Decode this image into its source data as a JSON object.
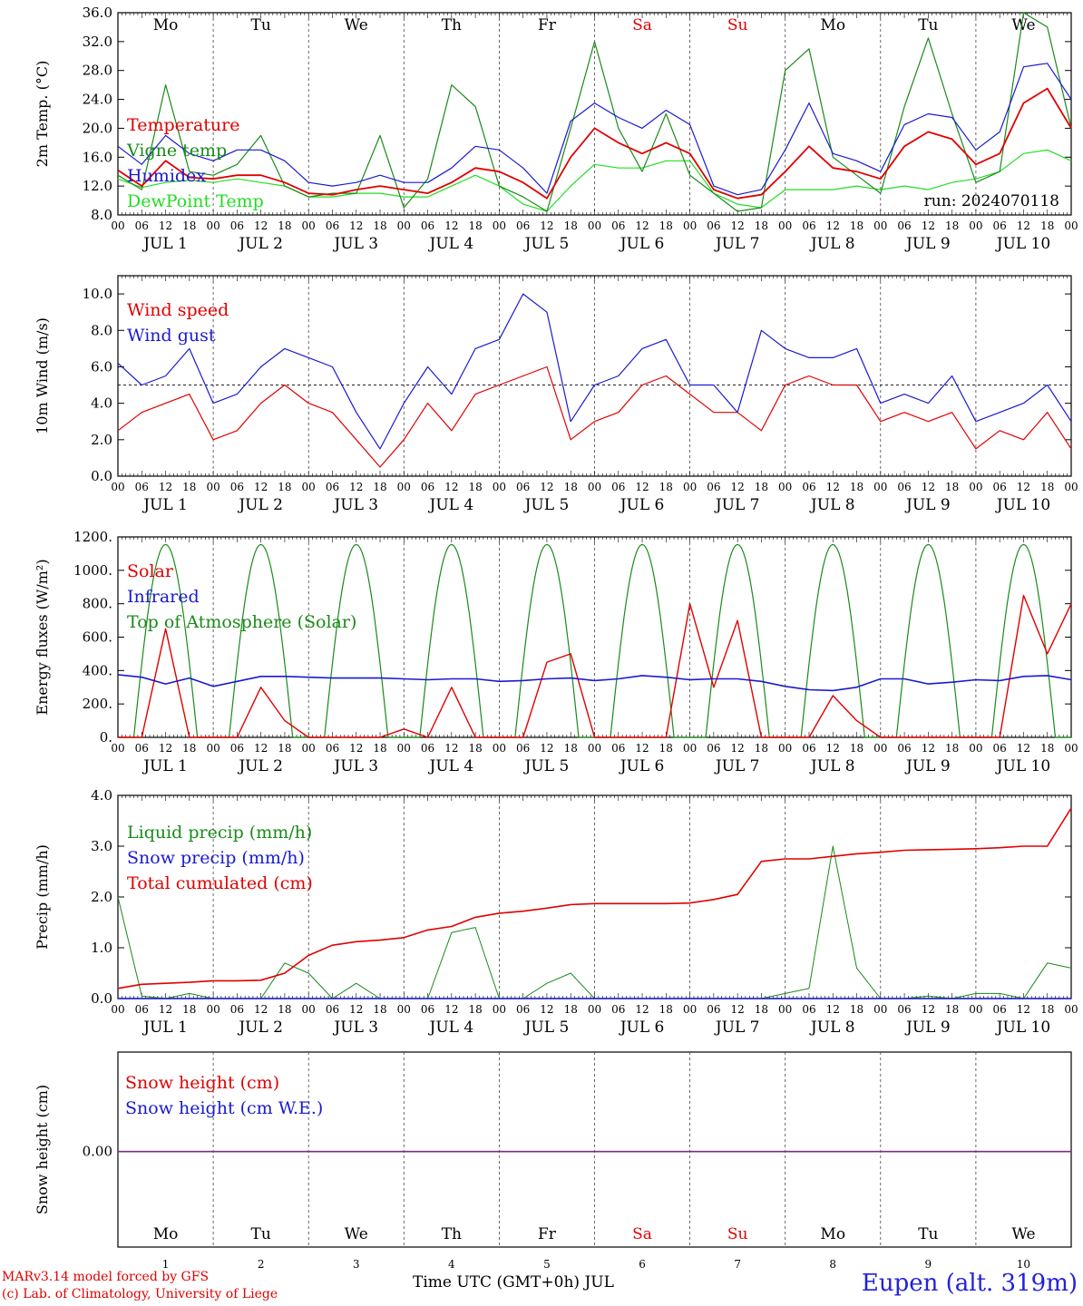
{
  "footer": {
    "credit_line1": "MARv3.14 model forced by GFS",
    "credit_line2": "(c) Lab. of Climatology, University of Liege",
    "x_title": "Time UTC (GMT+0h) JUL",
    "station": "Eupen (alt. 319m)"
  },
  "colors": {
    "red": "#e00000",
    "green": "#1a8a1a",
    "blue": "#1a1ad0",
    "lightgreen": "#22dd22",
    "purple": "#7a2a8a",
    "weekend": "#e00000"
  },
  "chart_data": [
    {
      "type": "line",
      "ylabel": "2m Temp. (°C)",
      "ylim": [
        8,
        36
      ],
      "yticks": [
        "8.0",
        "12.0",
        "16.0",
        "20.0",
        "24.0",
        "28.0",
        "32.0",
        "36.0"
      ],
      "x_hours": [
        0,
        6,
        12,
        18,
        24,
        30,
        36,
        42,
        48,
        54,
        60,
        66,
        72,
        78,
        84,
        90,
        96,
        102,
        108,
        114,
        120,
        126,
        132,
        138,
        144,
        150,
        156,
        162,
        168,
        174,
        180,
        186,
        192,
        198,
        204,
        210,
        216,
        222,
        228,
        234,
        240
      ],
      "weekdays": [
        "Mo",
        "Tu",
        "We",
        "Th",
        "Fr",
        "Sa",
        "Su",
        "Mo",
        "Tu",
        "We"
      ],
      "date_labels": [
        "JUL  1",
        "JUL  2",
        "JUL  3",
        "JUL  4",
        "JUL  5",
        "JUL  6",
        "JUL  7",
        "JUL  8",
        "JUL  9",
        "JUL 10"
      ],
      "annotation": "run: 2024070118",
      "series": [
        {
          "name": "Temperature",
          "color": "red",
          "values": [
            14.2,
            12.0,
            15.5,
            13.2,
            13.0,
            13.5,
            13.5,
            12.5,
            11.0,
            10.8,
            11.5,
            12.0,
            11.5,
            11.0,
            12.5,
            14.5,
            14.0,
            12.5,
            10.3,
            16.0,
            20.0,
            18.0,
            16.5,
            18.0,
            16.5,
            11.5,
            10.3,
            10.8,
            14.0,
            17.5,
            14.5,
            14.0,
            13.0,
            17.5,
            19.5,
            18.5,
            15.0,
            16.5,
            23.5,
            25.5,
            20.0
          ]
        },
        {
          "name": "Vigne temp",
          "color": "green",
          "values": [
            13.5,
            11.5,
            26.0,
            14.0,
            13.5,
            15.0,
            19.0,
            12.0,
            10.5,
            11.0,
            11.0,
            19.0,
            9.0,
            13.0,
            26.0,
            23.0,
            12.0,
            10.5,
            8.5,
            20.0,
            32.0,
            20.0,
            14.0,
            22.0,
            13.5,
            11.0,
            8.5,
            9.0,
            28.0,
            31.0,
            16.0,
            13.5,
            11.0,
            23.0,
            32.5,
            22.0,
            12.5,
            14.0,
            36.0,
            34.0,
            20.0
          ]
        },
        {
          "name": "Humidex",
          "color": "blue",
          "values": [
            17.5,
            15.0,
            19.0,
            16.5,
            15.5,
            17.0,
            17.0,
            15.5,
            12.5,
            12.0,
            12.5,
            13.5,
            12.5,
            12.5,
            14.5,
            17.5,
            17.0,
            14.5,
            11.0,
            21.0,
            23.5,
            21.5,
            20.0,
            22.5,
            20.5,
            12.0,
            10.8,
            11.5,
            17.0,
            23.5,
            16.5,
            15.5,
            14.0,
            20.5,
            22.0,
            21.5,
            17.0,
            19.5,
            28.5,
            29.0,
            24.0
          ]
        },
        {
          "name": "DewPoint Temp",
          "color": "lightgreen",
          "values": [
            13.0,
            11.8,
            12.5,
            12.8,
            12.5,
            13.0,
            12.5,
            12.0,
            10.5,
            10.5,
            11.0,
            11.0,
            10.5,
            10.5,
            12.0,
            13.5,
            12.0,
            9.5,
            8.5,
            12.0,
            15.0,
            14.5,
            14.5,
            15.5,
            15.5,
            11.0,
            9.5,
            9.0,
            11.5,
            11.5,
            11.5,
            12.0,
            11.5,
            12.0,
            11.5,
            12.5,
            13.0,
            14.0,
            16.5,
            17.0,
            15.5
          ]
        }
      ]
    },
    {
      "type": "line",
      "ylabel": "10m Wind (m/s)",
      "ylim": [
        0,
        11
      ],
      "yticks": [
        "0.0",
        "2.0",
        "4.0",
        "6.0",
        "8.0",
        "10.0"
      ],
      "ref_line": 5,
      "series": [
        {
          "name": "Wind speed",
          "color": "red",
          "values": [
            2.5,
            3.5,
            4.0,
            4.5,
            2.0,
            2.5,
            4.0,
            5.0,
            4.0,
            3.5,
            2.0,
            0.5,
            2.0,
            4.0,
            2.5,
            4.5,
            5.0,
            5.5,
            6.0,
            2.0,
            3.0,
            3.5,
            5.0,
            5.5,
            4.5,
            3.5,
            3.5,
            2.5,
            5.0,
            5.5,
            5.0,
            5.0,
            3.0,
            3.5,
            3.0,
            3.5,
            1.5,
            2.5,
            2.0,
            3.5,
            1.5
          ]
        },
        {
          "name": "Wind gust",
          "color": "blue",
          "values": [
            6.2,
            5.0,
            5.5,
            7.0,
            4.0,
            4.5,
            6.0,
            7.0,
            6.5,
            6.0,
            3.5,
            1.5,
            4.0,
            6.0,
            4.5,
            7.0,
            7.5,
            10.0,
            9.0,
            3.0,
            5.0,
            5.5,
            7.0,
            7.5,
            5.0,
            5.0,
            3.5,
            8.0,
            7.0,
            6.5,
            6.5,
            7.0,
            4.0,
            4.5,
            4.0,
            5.5,
            3.0,
            3.5,
            4.0,
            5.0,
            3.0
          ]
        }
      ]
    },
    {
      "type": "line",
      "ylabel": "Energy fluxes (W/m²)",
      "ylim": [
        0,
        1200
      ],
      "yticks": [
        "0.",
        "200.",
        "400.",
        "600.",
        "800.",
        "1000.",
        "1200."
      ],
      "series": [
        {
          "name": "Solar",
          "color": "red",
          "values": [
            0,
            0,
            650,
            0,
            0,
            0,
            300,
            100,
            0,
            0,
            0,
            0,
            50,
            0,
            300,
            0,
            0,
            0,
            450,
            500,
            0,
            0,
            0,
            0,
            800,
            300,
            700,
            0,
            0,
            0,
            250,
            100,
            0,
            0,
            0,
            0,
            0,
            0,
            850,
            500,
            800
          ]
        },
        {
          "name": "Infrared",
          "color": "blue",
          "values": [
            375,
            360,
            320,
            355,
            305,
            335,
            365,
            365,
            360,
            355,
            355,
            355,
            350,
            345,
            350,
            350,
            335,
            340,
            350,
            355,
            340,
            350,
            370,
            360,
            345,
            350,
            350,
            335,
            305,
            285,
            280,
            300,
            350,
            350,
            320,
            330,
            345,
            340,
            365,
            370,
            345
          ]
        },
        {
          "name": "Top of Atmosphere (Solar)",
          "color": "green",
          "peak": 1155
        }
      ]
    },
    {
      "type": "line",
      "ylabel": "Precip (mm/h)",
      "ylim": [
        0,
        4
      ],
      "yticks": [
        "0.0",
        "1.0",
        "2.0",
        "3.0",
        "4.0"
      ],
      "series": [
        {
          "name": "Liquid precip (mm/h)",
          "color": "green",
          "values": [
            2.0,
            0.05,
            0.0,
            0.1,
            0.0,
            0.0,
            0.0,
            0.7,
            0.5,
            0.0,
            0.3,
            0.0,
            0.0,
            0.0,
            1.3,
            1.4,
            0.0,
            0.0,
            0.3,
            0.5,
            0.0,
            0.0,
            0.0,
            0.0,
            0.0,
            0.0,
            0.0,
            0.0,
            0.1,
            0.2,
            3.0,
            0.6,
            0.0,
            0.0,
            0.05,
            0.0,
            0.1,
            0.1,
            0.0,
            0.7,
            0.6
          ]
        },
        {
          "name": "Snow precip (mm/h)",
          "color": "blue",
          "values": [
            0,
            0,
            0,
            0,
            0,
            0,
            0,
            0,
            0,
            0,
            0,
            0,
            0,
            0,
            0,
            0,
            0,
            0,
            0,
            0,
            0,
            0,
            0,
            0,
            0,
            0,
            0,
            0,
            0,
            0,
            0,
            0,
            0,
            0,
            0,
            0,
            0,
            0,
            0,
            0,
            0
          ]
        },
        {
          "name": "Total cumulated (cm)",
          "color": "red",
          "values": [
            0.2,
            0.28,
            0.3,
            0.32,
            0.35,
            0.35,
            0.36,
            0.5,
            0.85,
            1.05,
            1.12,
            1.15,
            1.2,
            1.35,
            1.42,
            1.6,
            1.68,
            1.72,
            1.78,
            1.85,
            1.87,
            1.87,
            1.87,
            1.87,
            1.88,
            1.95,
            2.05,
            2.7,
            2.75,
            2.75,
            2.8,
            2.85,
            2.88,
            2.92,
            2.93,
            2.94,
            2.95,
            2.97,
            3.0,
            3.0,
            3.75
          ]
        }
      ]
    },
    {
      "type": "line",
      "ylabel": "Snow height (cm)",
      "yticks": [
        "0.00"
      ],
      "day_numbers": [
        "1",
        "2",
        "3",
        "4",
        "5",
        "6",
        "7",
        "8",
        "9",
        "10"
      ],
      "series": [
        {
          "name": "Snow height (cm)",
          "color": "red",
          "values": [
            0,
            0
          ]
        },
        {
          "name": "Snow height (cm W.E.)",
          "color": "blue",
          "values": [
            0,
            0
          ]
        }
      ]
    }
  ]
}
